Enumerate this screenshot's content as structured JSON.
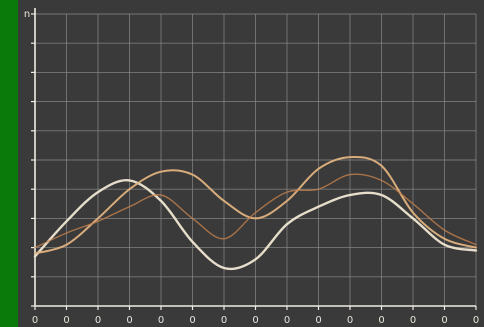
{
  "chart_data": {
    "type": "line",
    "title": "",
    "xlabel": "",
    "ylabel": "",
    "y_top_tick": "n",
    "x_tick_labels": [
      "0",
      "0",
      "0",
      "0",
      "0",
      "0",
      "0",
      "0",
      "0",
      "0",
      "0",
      "0",
      "0",
      "0",
      "0"
    ],
    "grid": true,
    "xlim": [
      0,
      14
    ],
    "ylim": [
      0,
      10
    ],
    "x": [
      0,
      1,
      2,
      3,
      4,
      5,
      6,
      7,
      8,
      9,
      10,
      11,
      12,
      13,
      14
    ],
    "series": [
      {
        "values": [
          1.7,
          2.9,
          3.9,
          4.3,
          3.6,
          2.2,
          1.3,
          1.6,
          2.8,
          3.4,
          3.8,
          3.8,
          3.0,
          2.1,
          1.9
        ],
        "color": "#efe6d2"
      },
      {
        "values": [
          1.8,
          2.1,
          3.0,
          4.0,
          4.6,
          4.5,
          3.6,
          3.0,
          3.6,
          4.7,
          5.1,
          4.8,
          3.2,
          2.3,
          2.0
        ],
        "color": "#e0b27e"
      },
      {
        "values": [
          2.0,
          2.5,
          2.9,
          3.4,
          3.8,
          3.0,
          2.3,
          3.2,
          3.9,
          4.0,
          4.5,
          4.3,
          3.5,
          2.6,
          2.1
        ],
        "color": "#c6824e"
      }
    ],
    "colors": {
      "background": "#3a3a3a",
      "grid": "#8c8c8c",
      "axis": "#f0ece4",
      "left_bar": "#0a7a0a"
    }
  }
}
